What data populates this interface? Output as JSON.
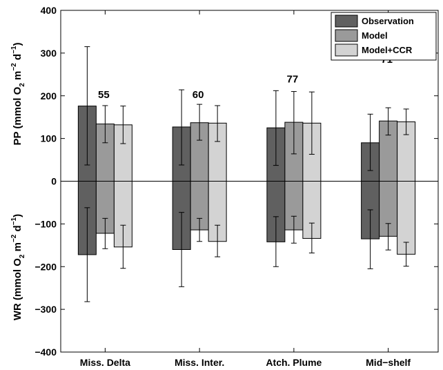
{
  "chart_data": {
    "type": "bar",
    "categories": [
      "Miss. Delta",
      "Miss. Inter.",
      "Atch. Plume",
      "Mid−shelf"
    ],
    "ylim": [
      -400,
      400
    ],
    "yticks": [
      -400,
      -300,
      -200,
      -100,
      0,
      100,
      200,
      300,
      400
    ],
    "ylabel_top": {
      "base": "PP (mmol O",
      "sub": "2",
      "mid": " m",
      "sup1": "−2",
      "mid2": " d",
      "sup2": "−1",
      "end": ")"
    },
    "ylabel_bottom": {
      "base": "WR (mmol O",
      "sub": "2",
      "mid": " m",
      "sup1": "−2",
      "mid2": " d",
      "sup2": "−1",
      "end": ")"
    },
    "grid": false,
    "legend_position": "top-right",
    "series": [
      {
        "name": "Observation",
        "color": "#606060",
        "pp": [
          176,
          127,
          125,
          90
        ],
        "pp_err": [
          [
            38,
            315
          ],
          [
            38,
            214
          ],
          [
            37,
            212
          ],
          [
            25,
            157
          ]
        ],
        "wr": [
          -172,
          -160,
          -142,
          -135
        ],
        "wr_err": [
          [
            -282,
            -62
          ],
          [
            -247,
            -73
          ],
          [
            -200,
            -83
          ],
          [
            -205,
            -67
          ]
        ]
      },
      {
        "name": "Model",
        "color": "#9a9a9a",
        "pp": [
          134,
          137,
          138,
          141
        ],
        "pp_err": [
          [
            90,
            177
          ],
          [
            96,
            180
          ],
          [
            64,
            210
          ],
          [
            108,
            172
          ]
        ],
        "wr": [
          -122,
          -114,
          -114,
          -129
        ],
        "wr_err": [
          [
            -158,
            -87
          ],
          [
            -141,
            -87
          ],
          [
            -145,
            -82
          ],
          [
            -161,
            -99
          ]
        ]
      },
      {
        "name": "Model+CCR",
        "color": "#d3d3d3",
        "pp": [
          132,
          136,
          136,
          139
        ],
        "pp_err": [
          [
            88,
            176
          ],
          [
            93,
            177
          ],
          [
            63,
            209
          ],
          [
            109,
            169
          ]
        ],
        "wr": [
          -154,
          -141,
          -134,
          -171
        ],
        "wr_err": [
          [
            -204,
            -103
          ],
          [
            -177,
            -103
          ],
          [
            -168,
            -98
          ],
          [
            -199,
            -143
          ]
        ]
      }
    ],
    "annotations": [
      {
        "category": "Miss. Delta",
        "text": "55",
        "y": 195
      },
      {
        "category": "Miss. Inter.",
        "text": "60",
        "y": 195
      },
      {
        "category": "Atch. Plume",
        "text": "77",
        "y": 231
      },
      {
        "category": "Mid−shelf",
        "text": "71",
        "y": 277
      }
    ]
  }
}
